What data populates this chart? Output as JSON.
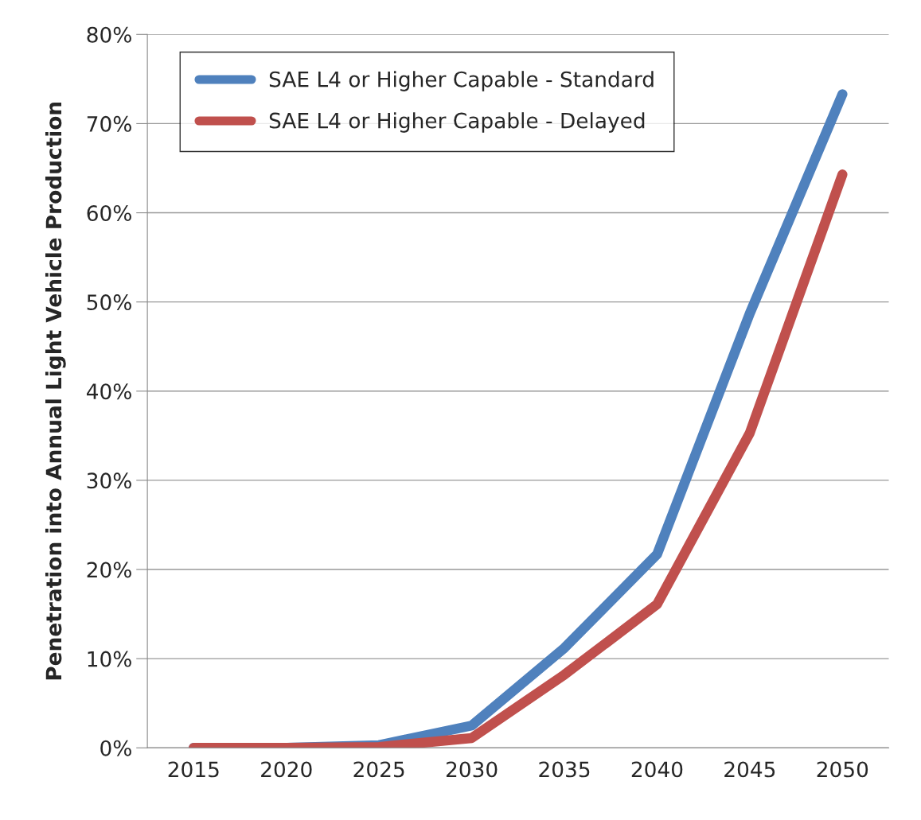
{
  "chart_data": {
    "type": "line",
    "ylabel": "Penetration into Annual Light Vehicle Production",
    "categories": [
      "2015",
      "2020",
      "2025",
      "2030",
      "2035",
      "2040",
      "2045",
      "2050"
    ],
    "series": [
      {
        "name": "SAE L4 or Higher Capable - Standard",
        "color": "#4f81bd",
        "values": [
          0,
          0,
          0.3,
          2.5,
          11.2,
          21.7,
          48.7,
          73.3
        ]
      },
      {
        "name": "SAE L4 or Higher Capable - Delayed",
        "color": "#c0504d",
        "values": [
          0,
          0,
          0.1,
          1.1,
          8.2,
          16.1,
          35.3,
          64.3
        ]
      }
    ],
    "ylim": [
      0,
      80
    ],
    "yticks": [
      {
        "value": 0,
        "label": "0%"
      },
      {
        "value": 10,
        "label": "10%"
      },
      {
        "value": 20,
        "label": "20%"
      },
      {
        "value": 30,
        "label": "30%"
      },
      {
        "value": 40,
        "label": "40%"
      },
      {
        "value": 50,
        "label": "50%"
      },
      {
        "value": 60,
        "label": "60%"
      },
      {
        "value": 70,
        "label": "70%"
      },
      {
        "value": 80,
        "label": "80%"
      }
    ],
    "grid": "y",
    "legend": "top left",
    "marker": "none",
    "line_style": "solid"
  }
}
